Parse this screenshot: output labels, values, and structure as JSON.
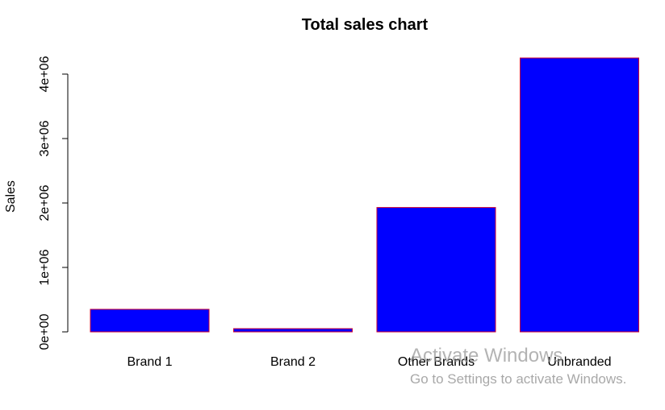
{
  "chart_data": {
    "type": "bar",
    "title": "Total sales chart",
    "xlabel": "",
    "ylabel": "Sales",
    "categories": [
      "Brand 1",
      "Brand 2",
      "Other Brands",
      "Unbranded"
    ],
    "values": [
      350000,
      50000,
      1930000,
      4250000
    ],
    "ylim": [
      0,
      4250000
    ],
    "yticks": [
      0,
      1000000,
      2000000,
      3000000,
      4000000
    ],
    "ytick_labels": [
      "0e+00",
      "1e+06",
      "2e+06",
      "3e+06",
      "4e+06"
    ],
    "grid": false,
    "bar_fill": "#0000ff",
    "bar_border": "#cc0033"
  },
  "watermark": {
    "title": "Activate Windows",
    "subtitle": "Go to Settings to activate Windows."
  }
}
